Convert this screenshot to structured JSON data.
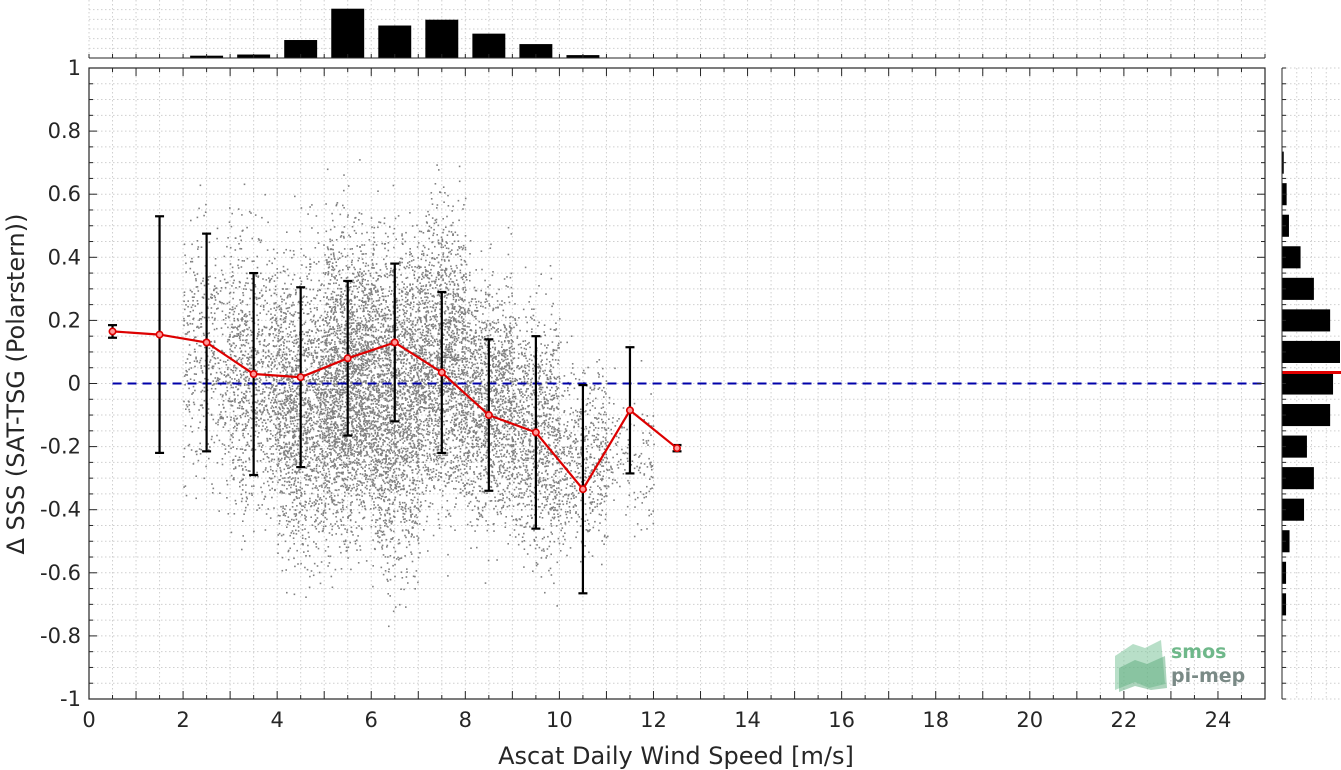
{
  "chart_data": {
    "type": "scatter",
    "xlabel": "Ascat Daily Wind Speed [m/s]",
    "ylabel": "Δ SSS (SAT-TSG (Polarstern))",
    "xlim": [
      0,
      25
    ],
    "ylim": [
      -1,
      1
    ],
    "xticks": [
      0,
      2,
      4,
      6,
      8,
      10,
      12,
      14,
      16,
      18,
      20,
      22,
      24
    ],
    "yticks": [
      -1,
      -0.8,
      -0.6,
      -0.4,
      -0.2,
      0,
      0.2,
      0.4,
      0.6,
      0.8,
      1
    ],
    "grid": true,
    "reference_line_y": 0,
    "scatter_color": "#808080",
    "mean_color": "#dd0000",
    "error_color": "#000000",
    "reference_color": "#0000aa",
    "binned_means": {
      "x": [
        0.5,
        1.5,
        2.5,
        3.5,
        4.5,
        5.5,
        6.5,
        7.5,
        8.5,
        9.5,
        10.5,
        11.5,
        12.5
      ],
      "y": [
        0.165,
        0.155,
        0.13,
        0.03,
        0.02,
        0.08,
        0.13,
        0.035,
        -0.1,
        -0.155,
        -0.335,
        -0.085,
        -0.205
      ],
      "std": [
        0.02,
        0.375,
        0.345,
        0.32,
        0.285,
        0.245,
        0.25,
        0.255,
        0.24,
        0.305,
        0.33,
        0.2,
        0.01
      ]
    },
    "scatter_clusters": [
      {
        "x": [
          2.0,
          3.0
        ],
        "y_range": [
          -0.5,
          0.7
        ],
        "n": 450
      },
      {
        "x": [
          3.0,
          4.0
        ],
        "y_range": [
          -0.6,
          0.65
        ],
        "n": 900
      },
      {
        "x": [
          4.0,
          5.0
        ],
        "y_range": [
          -0.75,
          0.6
        ],
        "n": 1500
      },
      {
        "x": [
          5.0,
          6.0
        ],
        "y_range": [
          -0.7,
          0.7
        ],
        "n": 2200
      },
      {
        "x": [
          6.0,
          7.0
        ],
        "y_range": [
          -0.8,
          0.7
        ],
        "n": 2000
      },
      {
        "x": [
          7.0,
          8.0
        ],
        "y_range": [
          -0.6,
          0.75
        ],
        "n": 1700
      },
      {
        "x": [
          8.0,
          9.0
        ],
        "y_range": [
          -0.6,
          0.5
        ],
        "n": 1300
      },
      {
        "x": [
          9.0,
          10.0
        ],
        "y_range": [
          -0.7,
          0.4
        ],
        "n": 1000
      },
      {
        "x": [
          10.0,
          11.0
        ],
        "y_range": [
          -0.65,
          0.2
        ],
        "n": 500
      },
      {
        "x": [
          11.0,
          12.0
        ],
        "y_range": [
          -0.55,
          0.1
        ],
        "n": 150
      }
    ],
    "x_histogram": {
      "bin_centers": [
        2.5,
        3.5,
        4.5,
        5.5,
        6.5,
        7.5,
        8.5,
        9.5,
        10.5
      ],
      "relative_counts": [
        0.04,
        0.06,
        0.31,
        0.85,
        0.56,
        0.66,
        0.42,
        0.24,
        0.05
      ]
    },
    "y_histogram": {
      "bin_centers": [
        0.7,
        0.6,
        0.5,
        0.4,
        0.3,
        0.2,
        0.1,
        0.0,
        -0.1,
        -0.2,
        -0.3,
        -0.4,
        -0.5,
        -0.6,
        -0.7
      ],
      "relative_counts": [
        0.03,
        0.08,
        0.12,
        0.32,
        0.55,
        0.83,
        1.0,
        0.88,
        0.83,
        0.43,
        0.55,
        0.38,
        0.13,
        0.07,
        0.07
      ],
      "mean_line_y": 0.035
    }
  },
  "logo": {
    "line1": "smos",
    "line2": "pi-mep"
  }
}
